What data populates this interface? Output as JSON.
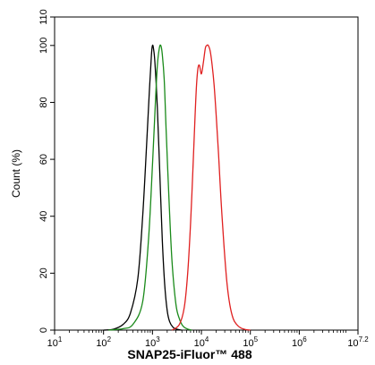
{
  "chart_data": {
    "type": "line",
    "xlabel": "SNAP25-iFluor™ 488",
    "ylabel": "Count  (%)",
    "xscale": "log",
    "xlim": [
      1,
      7.2
    ],
    "ylim": [
      0,
      110
    ],
    "x_ticks": [
      {
        "base": "10",
        "exp": "1",
        "value": 1
      },
      {
        "base": "10",
        "exp": "2",
        "value": 2
      },
      {
        "base": "10",
        "exp": "3",
        "value": 3
      },
      {
        "base": "10",
        "exp": "4",
        "value": 4
      },
      {
        "base": "10",
        "exp": "5",
        "value": 5
      },
      {
        "base": "10",
        "exp": "6",
        "value": 6
      },
      {
        "base": "10",
        "exp": "7.2",
        "value": 7.2
      }
    ],
    "y_ticks": [
      "0",
      "20",
      "40",
      "60",
      "80",
      "100",
      "110"
    ],
    "y_tick_values": [
      0,
      20,
      40,
      60,
      80,
      100,
      110
    ],
    "grid": false,
    "legend": "none",
    "series": [
      {
        "color": "#000000",
        "x": [
          2.0,
          2.2,
          2.4,
          2.55,
          2.7,
          2.8,
          2.88,
          2.94,
          2.98,
          3.0,
          3.02,
          3.05,
          3.1,
          3.15,
          3.2,
          3.25,
          3.3,
          3.35,
          3.42,
          3.5,
          3.6
        ],
        "y": [
          0,
          0.3,
          2,
          6,
          18,
          40,
          65,
          85,
          97,
          100,
          99,
          94,
          78,
          55,
          32,
          16,
          7,
          3,
          1,
          0.3,
          0
        ]
      },
      {
        "color": "#1a8a1a",
        "x": [
          2.1,
          2.4,
          2.6,
          2.8,
          2.92,
          3.0,
          3.06,
          3.1,
          3.14,
          3.17,
          3.2,
          3.24,
          3.28,
          3.34,
          3.4,
          3.48,
          3.55,
          3.62,
          3.7,
          3.8
        ],
        "y": [
          0,
          0.5,
          2,
          10,
          32,
          58,
          80,
          93,
          99,
          100,
          97,
          88,
          70,
          45,
          24,
          9,
          4,
          1.5,
          0.5,
          0
        ]
      },
      {
        "color": "#e02020",
        "x": [
          3.4,
          3.55,
          3.65,
          3.72,
          3.78,
          3.83,
          3.87,
          3.9,
          3.93,
          3.96,
          4.0,
          4.04,
          4.08,
          4.11,
          4.14,
          4.18,
          4.22,
          4.26,
          4.3,
          4.35,
          4.4,
          4.46,
          4.52,
          4.58,
          4.65,
          4.72,
          4.8,
          4.9,
          5.0
        ],
        "y": [
          0,
          2,
          8,
          20,
          38,
          58,
          75,
          86,
          92,
          93,
          90,
          94,
          99,
          100,
          100,
          98,
          93,
          86,
          76,
          62,
          46,
          30,
          17,
          9,
          4,
          2,
          0.8,
          0.2,
          0
        ]
      }
    ]
  }
}
